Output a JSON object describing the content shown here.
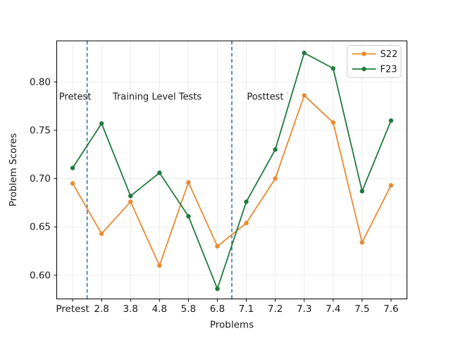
{
  "figure": {
    "background": "#ffffff"
  },
  "chart_data": {
    "type": "line",
    "title": "",
    "xlabel": "Problems",
    "ylabel": "Problem Scores",
    "categories": [
      "Pretest",
      "2.8",
      "3.8",
      "4.8",
      "5.8",
      "6.8",
      "7.1",
      "7.2",
      "7.3",
      "7.4",
      "7.5",
      "7.6"
    ],
    "series": [
      {
        "name": "S22",
        "color": "#e98a2f",
        "marker": "circle",
        "values": [
          0.695,
          0.643,
          0.676,
          0.61,
          0.696,
          0.63,
          0.654,
          0.7,
          0.786,
          0.758,
          0.634,
          0.693
        ]
      },
      {
        "name": "F23",
        "color": "#1f7b3d",
        "marker": "circle",
        "values": [
          0.711,
          0.757,
          0.682,
          0.706,
          0.661,
          0.586,
          0.676,
          0.73,
          0.83,
          0.814,
          0.687,
          0.76
        ]
      }
    ],
    "yticks": [
      0.6,
      0.65,
      0.7,
      0.75,
      0.8
    ],
    "ytick_format_decimals": 2,
    "ylim": [
      0.5755,
      0.8425
    ],
    "xlim": [
      -0.55,
      11.55
    ],
    "grid": true,
    "grid_color": "#eaeaea",
    "legend": {
      "position": "upper right",
      "entries": [
        "S22",
        "F23"
      ]
    },
    "separators": {
      "style": "dashed",
      "color": "#2b6ca3",
      "x_indices": [
        0.5,
        5.5
      ]
    },
    "annotations": [
      {
        "text": "Pretest",
        "x_index": -0.47,
        "y": 0.785,
        "anchor": "start"
      },
      {
        "text": "Training Level Tests",
        "x_index": 2.92,
        "y": 0.785,
        "anchor": "middle"
      },
      {
        "text": "Posttest",
        "x_index": 6.02,
        "y": 0.785,
        "anchor": "start"
      }
    ],
    "spine_color": "#000000",
    "text_color": "#1a1a1a"
  }
}
